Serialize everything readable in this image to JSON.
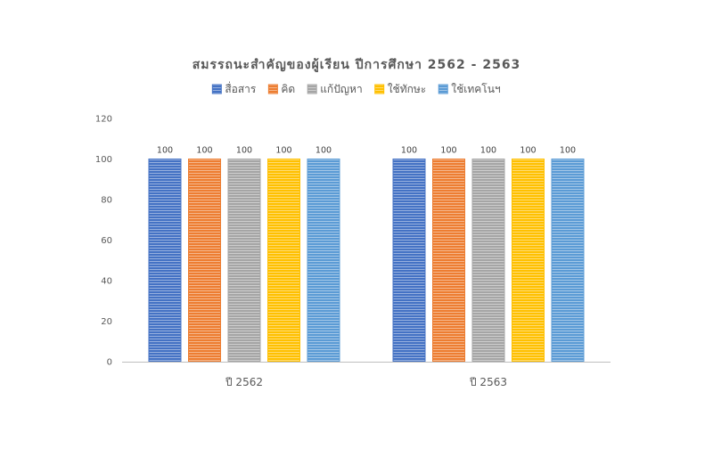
{
  "chart_data": {
    "type": "bar",
    "title": "สมรรถนะสำคัญของผู้เรียน ปีการศึกษา 2562 - 2563",
    "categories": [
      "ปี 2562",
      "ปี 2563"
    ],
    "series": [
      {
        "name": "สื่อสาร",
        "values": [
          100,
          100
        ],
        "color": "#4472C4"
      },
      {
        "name": "คิด",
        "values": [
          100,
          100
        ],
        "color": "#ED7D31"
      },
      {
        "name": "แก้ปัญหา",
        "values": [
          100,
          100
        ],
        "color": "#A5A5A5"
      },
      {
        "name": "ใช้ทักษะ",
        "values": [
          100,
          100
        ],
        "color": "#FFC000"
      },
      {
        "name": "ใช้เทคโนฯ",
        "values": [
          100,
          100
        ],
        "color": "#5B9BD5"
      }
    ],
    "ylim": [
      0,
      120
    ],
    "yticks": [
      0,
      20,
      40,
      60,
      80,
      100,
      120
    ],
    "gridlines": false,
    "legend": "top",
    "data_labels": true
  }
}
